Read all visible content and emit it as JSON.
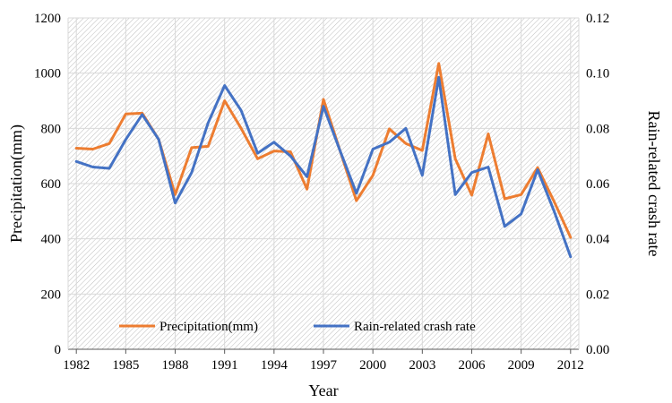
{
  "chart_data": {
    "type": "line",
    "title": "",
    "xlabel": "Year",
    "ylabel_left": "Precipitation(mm)",
    "ylabel_right": "Rain-related crash rate",
    "x": [
      1982,
      1983,
      1984,
      1985,
      1986,
      1987,
      1988,
      1989,
      1990,
      1991,
      1992,
      1993,
      1994,
      1995,
      1996,
      1997,
      1998,
      1999,
      2000,
      2001,
      2002,
      2003,
      2004,
      2005,
      2006,
      2007,
      2008,
      2009,
      2010,
      2011,
      2012
    ],
    "x_tick_labels": [
      "1982",
      "1985",
      "1988",
      "1991",
      "1994",
      "1997",
      "2000",
      "2003",
      "2006",
      "2009",
      "2012"
    ],
    "y_left_ticks": [
      "0",
      "200",
      "400",
      "600",
      "800",
      "1000",
      "1200"
    ],
    "y_right_ticks": [
      "0.00",
      "0.02",
      "0.04",
      "0.06",
      "0.08",
      "0.10",
      "0.12"
    ],
    "ylim_left": [
      0,
      1200
    ],
    "ylim_right": [
      0,
      0.12
    ],
    "grid": true,
    "legend_position": "bottom-center",
    "series": [
      {
        "name": "Precipitation(mm)",
        "axis": "left",
        "color": "#ED7D31",
        "values": [
          728,
          725,
          745,
          852,
          855,
          760,
          560,
          730,
          735,
          900,
          800,
          690,
          718,
          715,
          580,
          905,
          720,
          538,
          630,
          798,
          745,
          720,
          1035,
          690,
          558,
          780,
          545,
          560,
          658,
          535,
          405
        ]
      },
      {
        "name": "Rain-related crash rate",
        "axis": "right",
        "color": "#4472C4",
        "values": [
          0.068,
          0.066,
          0.0655,
          0.076,
          0.085,
          0.076,
          0.053,
          0.064,
          0.082,
          0.0955,
          0.0865,
          0.071,
          0.075,
          0.07,
          0.0625,
          0.088,
          0.072,
          0.0565,
          0.0725,
          0.075,
          0.08,
          0.063,
          0.0985,
          0.056,
          0.064,
          0.066,
          0.0445,
          0.049,
          0.065,
          0.05,
          0.0335
        ]
      }
    ]
  }
}
